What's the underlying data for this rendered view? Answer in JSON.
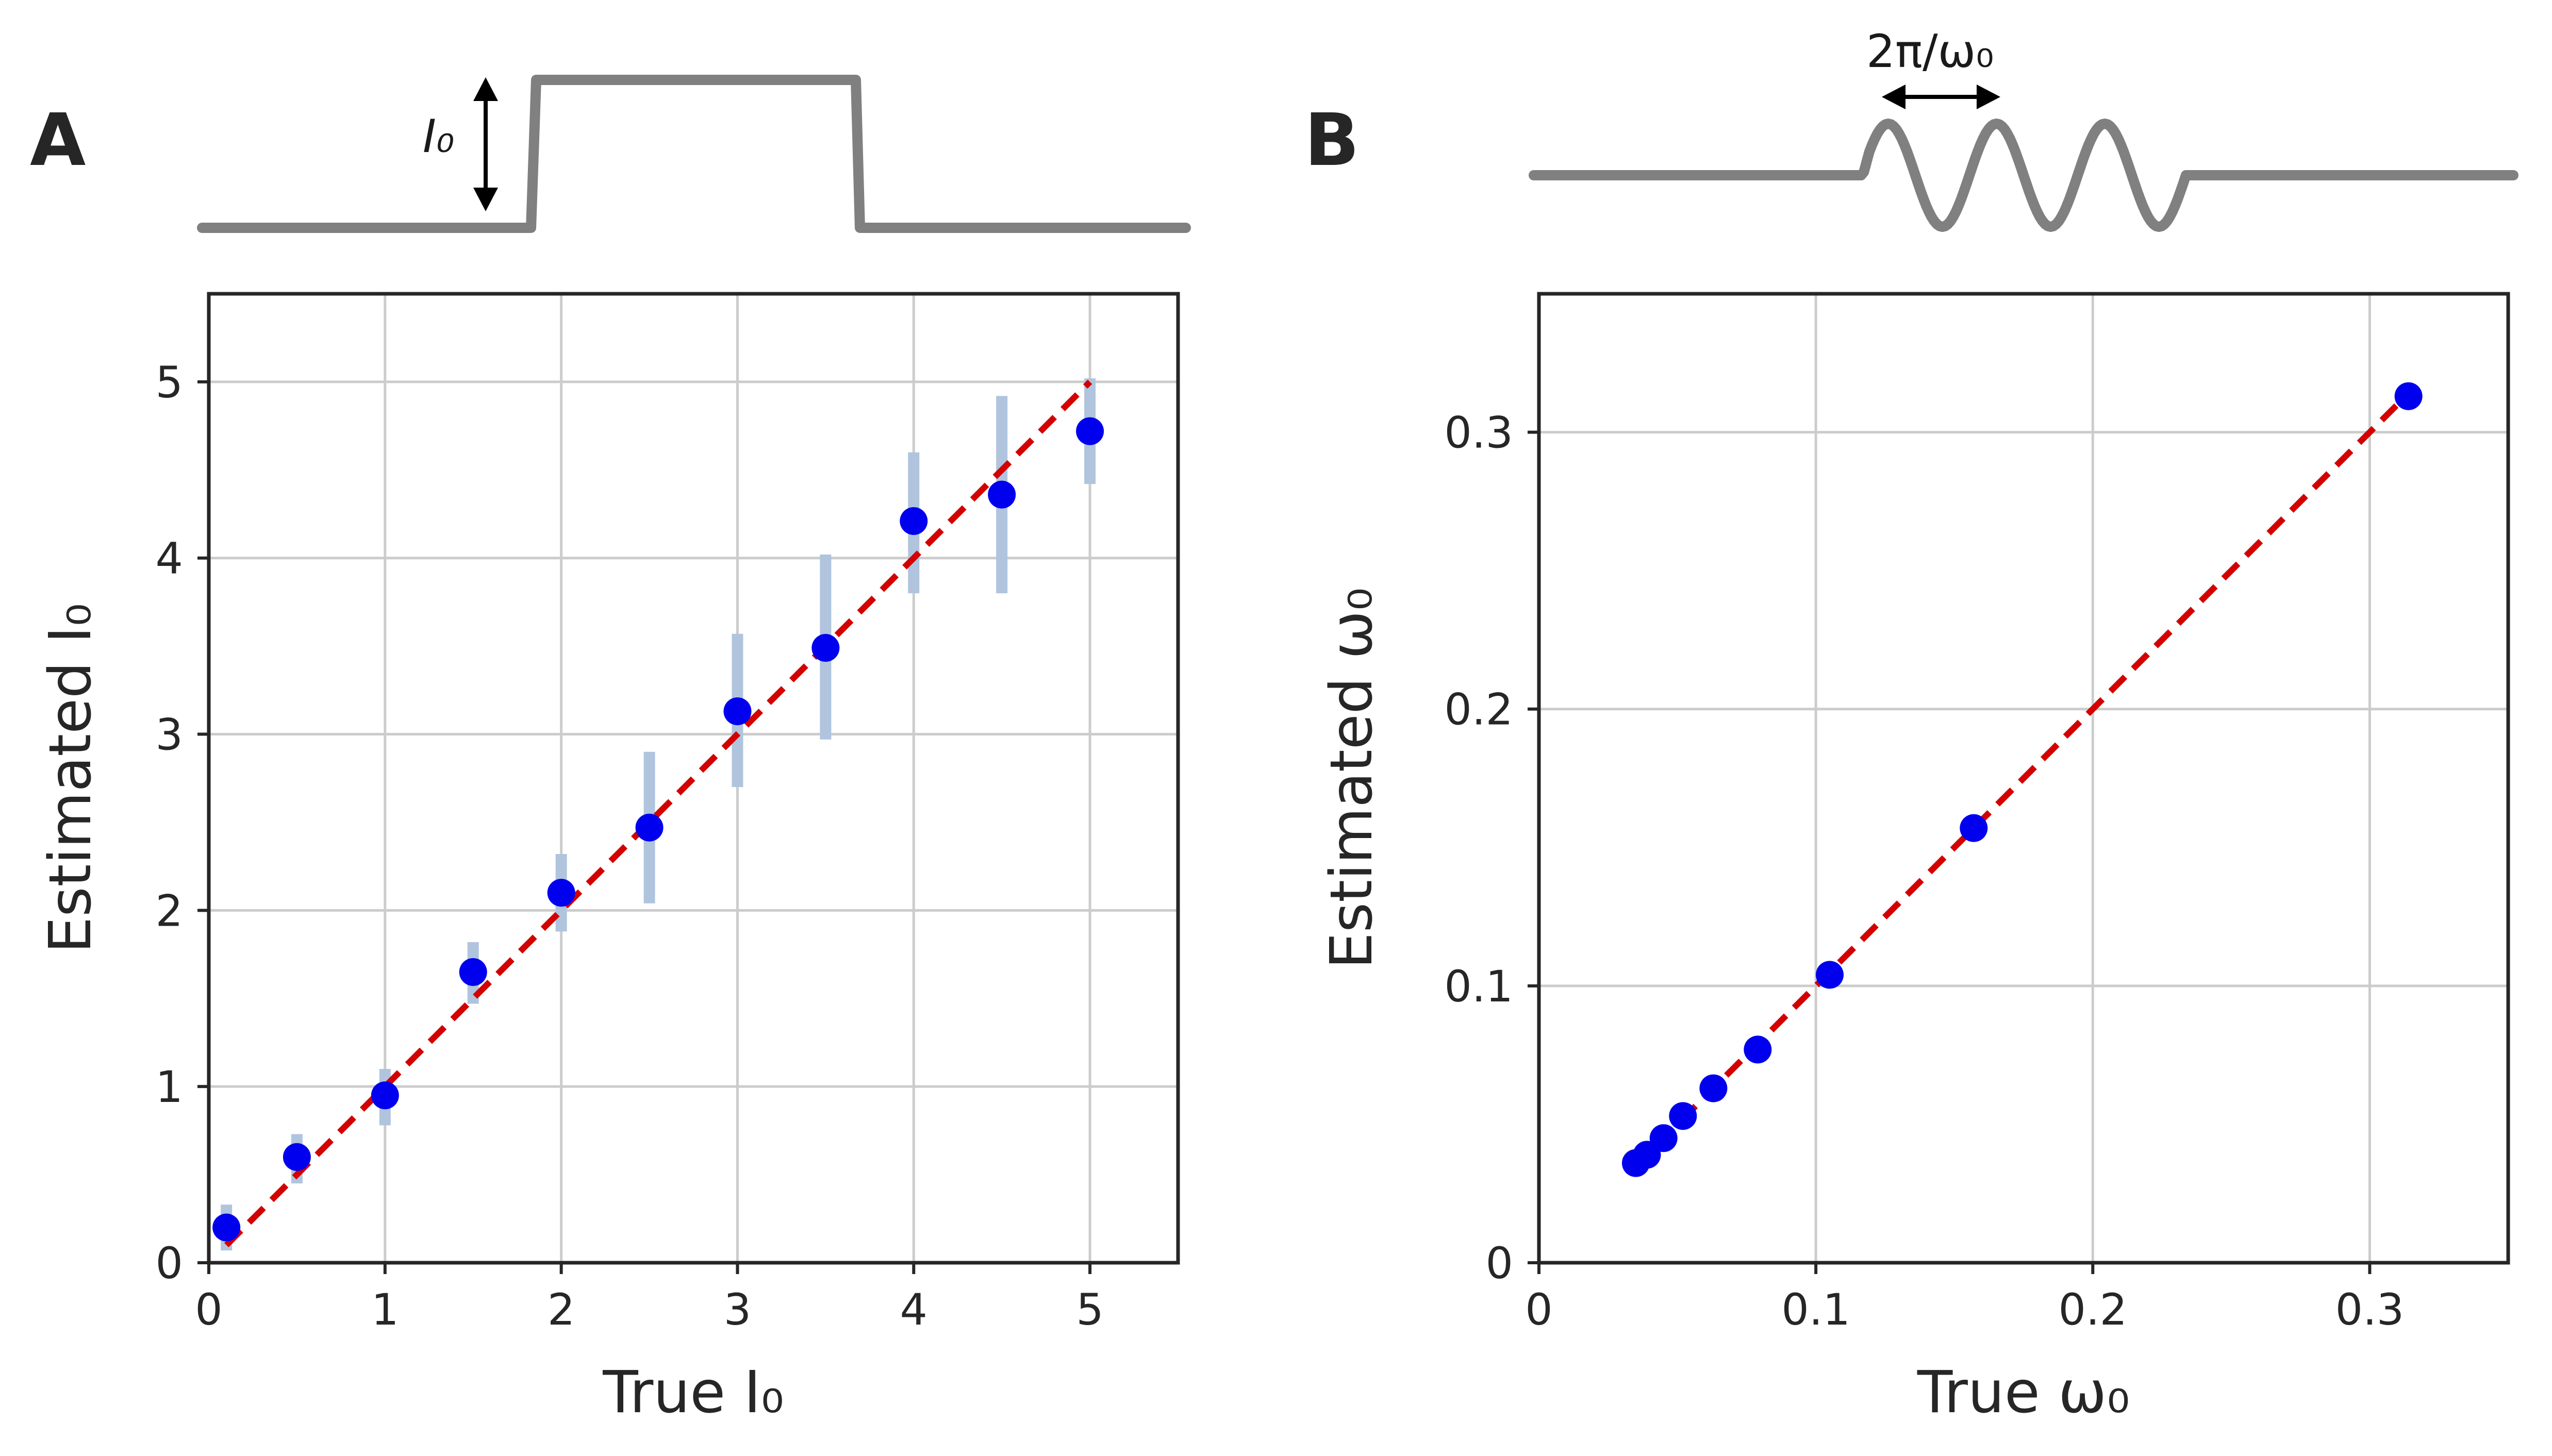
{
  "panels": {
    "A": {
      "label": "A",
      "inset_label": "I₀",
      "xlabel": "True I₀",
      "ylabel": "Estimated I₀"
    },
    "B": {
      "label": "B",
      "inset_label": "2π/ω₀",
      "xlabel": "True ω₀",
      "ylabel": "Estimated ω₀"
    }
  },
  "chart_data": [
    {
      "type": "scatter",
      "panel": "A",
      "xlabel": "True I₀",
      "ylabel": "Estimated I₀",
      "xlim": [
        0,
        5.5
      ],
      "ylim": [
        0,
        5.5
      ],
      "xticks": [
        0,
        1,
        2,
        3,
        4,
        5
      ],
      "yticks": [
        0,
        1,
        2,
        3,
        4,
        5
      ],
      "grid": true,
      "identity_line": {
        "from": [
          0.1,
          0.1
        ],
        "to": [
          5,
          5
        ],
        "color": "#d40000",
        "style": "dashed"
      },
      "point_color": "#0000ee",
      "errorbar_color": "#b0c4de",
      "x": [
        0.1,
        0.5,
        1.0,
        1.5,
        2.0,
        2.5,
        3.0,
        3.5,
        4.0,
        4.5,
        5.0
      ],
      "y": [
        0.2,
        0.6,
        0.95,
        1.65,
        2.1,
        2.47,
        3.13,
        3.49,
        4.21,
        4.36,
        4.72
      ],
      "err_low": [
        0.07,
        0.45,
        0.78,
        1.47,
        1.88,
        2.04,
        2.7,
        2.97,
        3.8,
        3.8,
        4.42
      ],
      "err_high": [
        0.33,
        0.73,
        1.1,
        1.82,
        2.32,
        2.9,
        3.57,
        4.02,
        4.6,
        4.92,
        5.02
      ]
    },
    {
      "type": "scatter",
      "panel": "B",
      "xlabel": "True ω₀",
      "ylabel": "Estimated ω₀",
      "xlim": [
        0,
        0.35
      ],
      "ylim": [
        0,
        0.35
      ],
      "xticks": [
        0,
        0.1,
        0.2,
        0.3
      ],
      "yticks": [
        0,
        0.1,
        0.2,
        0.3
      ],
      "grid": true,
      "identity_line": {
        "from": [
          0.035,
          0.035
        ],
        "to": [
          0.314,
          0.314
        ],
        "color": "#d40000",
        "style": "dashed"
      },
      "point_color": "#0000ee",
      "x": [
        0.035,
        0.039,
        0.045,
        0.052,
        0.063,
        0.079,
        0.105,
        0.157,
        0.314
      ],
      "y": [
        0.036,
        0.039,
        0.045,
        0.053,
        0.063,
        0.077,
        0.104,
        0.157,
        0.313
      ]
    }
  ]
}
